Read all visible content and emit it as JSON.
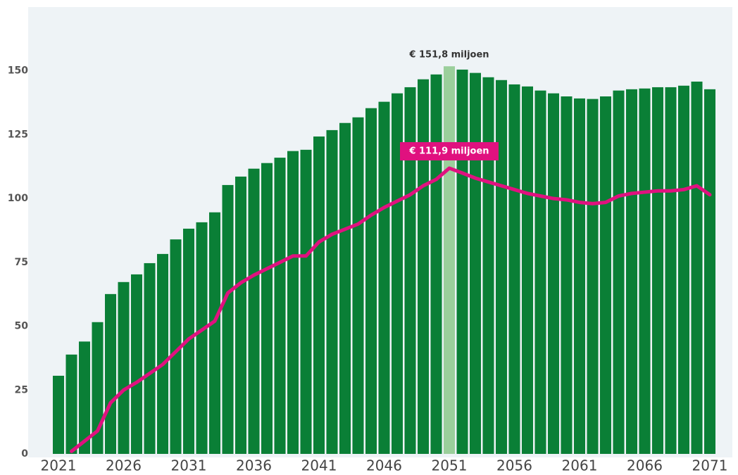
{
  "chart_data": {
    "type": "bar",
    "categories": [
      2021,
      null,
      null,
      null,
      null,
      2026,
      null,
      null,
      null,
      null,
      2031,
      null,
      null,
      null,
      null,
      2036,
      null,
      null,
      null,
      null,
      2041,
      null,
      null,
      null,
      null,
      2046,
      null,
      null,
      null,
      null,
      2051,
      null,
      null,
      null,
      null,
      2056,
      null,
      null,
      null,
      null,
      2061,
      null,
      null,
      null,
      null,
      2066,
      null,
      null,
      null,
      null,
      2071
    ],
    "series": [
      {
        "kind": "bar",
        "color": "#0a7f36",
        "highlight_color": "#9bcf9b",
        "values": [
          30.6,
          38.9,
          44,
          51.6,
          62.6,
          67.3,
          70.3,
          74.7,
          78.3,
          84,
          88.2,
          90.7,
          94.6,
          105.3,
          108.6,
          111.7,
          113.9,
          116,
          118.6,
          119.1,
          124.3,
          126.8,
          129.6,
          131.8,
          135.4,
          137.9,
          141.2,
          143.6,
          146.7,
          148.6,
          151.8,
          150.5,
          149.2,
          147.5,
          146.4,
          144.7,
          143.9,
          142.3,
          141.2,
          140,
          139.2,
          139,
          140,
          142.3,
          142.8,
          143.1,
          143.6,
          143.6,
          144.2,
          145.8,
          142.8
        ],
        "value_labels": [
          null,
          null,
          null,
          null,
          null,
          null,
          null,
          null,
          null,
          null,
          null,
          null,
          null,
          null,
          null,
          null,
          null,
          null,
          null,
          null,
          null,
          null,
          null,
          null,
          null,
          null,
          null,
          null,
          null,
          null,
          "€ 151,8 miljoen",
          null,
          null,
          null,
          null,
          null,
          null,
          null,
          null,
          null,
          null,
          null,
          null,
          null,
          null,
          null,
          null,
          null,
          null,
          null,
          null
        ]
      },
      {
        "kind": "line",
        "color": "#e0117f",
        "values": [
          null,
          1,
          5,
          9,
          20,
          25,
          28,
          31.5,
          35,
          40,
          45,
          48.5,
          52,
          63,
          67,
          70,
          72.5,
          75,
          77.5,
          77.5,
          83,
          86,
          88,
          90,
          93.5,
          96.5,
          99,
          101.5,
          105,
          107.5,
          111.9,
          110,
          108,
          106.5,
          105,
          103.5,
          102,
          101,
          100,
          99.5,
          98.5,
          98,
          98.5,
          101,
          102,
          102.5,
          103,
          103,
          103.5,
          105,
          101.5
        ],
        "value_labels": [
          null,
          null,
          null,
          null,
          null,
          null,
          null,
          null,
          null,
          null,
          null,
          null,
          null,
          null,
          null,
          null,
          null,
          null,
          null,
          null,
          null,
          null,
          null,
          null,
          null,
          null,
          null,
          null,
          null,
          null,
          "€ 111,9 miljoen",
          null,
          null,
          null,
          null,
          null,
          null,
          null,
          null,
          null,
          null,
          null,
          null,
          null,
          null,
          null,
          null,
          null,
          null,
          null,
          null
        ]
      }
    ],
    "ylim": [
      0,
      175
    ],
    "yticks": [
      0,
      25,
      50,
      75,
      100,
      125,
      150
    ],
    "background": "#eef3f6"
  }
}
